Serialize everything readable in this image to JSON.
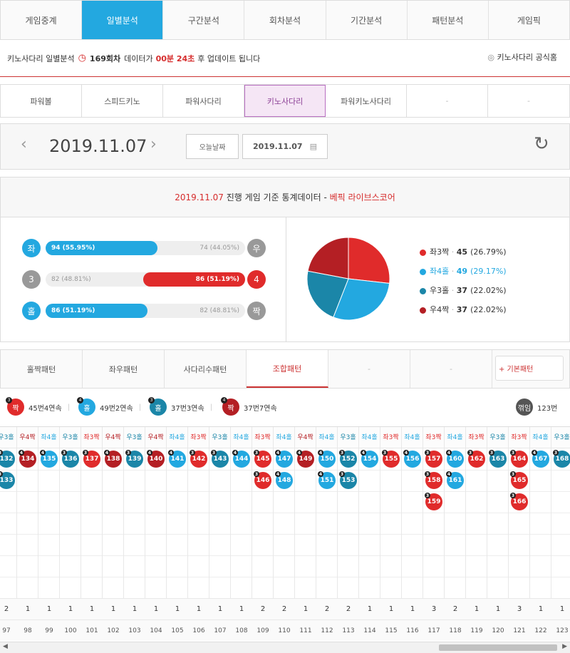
{
  "nav": {
    "tabs": [
      "게임중계",
      "일별분석",
      "구간분석",
      "회차분석",
      "기간분석",
      "패턴분석",
      "게임픽"
    ],
    "active": 1
  },
  "info": {
    "prefix": "키노사다리 일별분석",
    "round": "169회차",
    "mid": "데이터가",
    "time": "00분 24초",
    "suffix": "후 업데이트 됩니다",
    "home": "키노사다리 공식홈"
  },
  "games": {
    "tabs": [
      "파워볼",
      "스피드키노",
      "파워사다리",
      "키노사다리",
      "파워키노사다리",
      "-",
      "-"
    ],
    "active": 3
  },
  "date": {
    "display": "2019.11.07",
    "today_btn": "오늘날짜",
    "picker": "2019.11.07"
  },
  "stats": {
    "header_date": "2019.11.07",
    "header_mid": "진행 게임 기준 통계데이터 -",
    "header_source": "베픽 라이브스코어",
    "rows": [
      {
        "left_label": "좌",
        "left_text": "94 (55.95%)",
        "left_pct": 55.95,
        "right_text": "74 (44.05%)",
        "right_label": "우",
        "winner": "left",
        "left_color": "#23a8e0",
        "right_color": "#999999",
        "fill_color": "#23a8e0"
      },
      {
        "left_label": "3",
        "left_text": "82 (48.81%)",
        "left_pct": 48.81,
        "right_text": "86 (51.19%)",
        "right_label": "4",
        "winner": "right",
        "left_color": "#999999",
        "right_color": "#e02b2b",
        "fill_color": "#e02b2b"
      },
      {
        "left_label": "홀",
        "left_text": "86 (51.19%)",
        "left_pct": 51.19,
        "right_text": "82 (48.81%)",
        "right_label": "짝",
        "winner": "left",
        "left_color": "#23a8e0",
        "right_color": "#999999",
        "fill_color": "#23a8e0"
      }
    ]
  },
  "chart_data": {
    "type": "pie",
    "slices": [
      {
        "label": "좌3짝",
        "value": 45,
        "pct": "26.79%",
        "color": "#e02b2b"
      },
      {
        "label": "좌4홀",
        "value": 49,
        "pct": "29.17%",
        "color": "#23a8e0"
      },
      {
        "label": "우3홀",
        "value": 37,
        "pct": "22.02%",
        "color": "#1b86a8"
      },
      {
        "label": "우4짝",
        "value": 37,
        "pct": "22.02%",
        "color": "#b41f24"
      }
    ]
  },
  "pattern_tabs": {
    "tabs": [
      "홀짝패턴",
      "좌우패턴",
      "사다리수패턴",
      "조합패턴",
      "-",
      "-"
    ],
    "active": 3,
    "basic_btn": "+ 기본패턴"
  },
  "summary": [
    {
      "label": "짝",
      "badge": "3",
      "text": "45번4연속",
      "color": "#e02b2b"
    },
    {
      "label": "홀",
      "badge": "4",
      "text": "49번2연속",
      "color": "#23a8e0"
    },
    {
      "label": "홀",
      "badge": "3",
      "text": "37번3연속",
      "color": "#1b86a8"
    },
    {
      "label": "짝",
      "badge": "4",
      "text": "37번7연속",
      "color": "#b41f24"
    }
  ],
  "summary_end": {
    "label": "꺾임",
    "text": "123번"
  },
  "columns": [
    {
      "h": "우3홀",
      "t": "u3",
      "balls": [
        "132",
        "133"
      ],
      "cnt": "2",
      "r": "97"
    },
    {
      "h": "우4짝",
      "t": "u4",
      "balls": [
        "134"
      ],
      "cnt": "1",
      "r": "98"
    },
    {
      "h": "좌4홀",
      "t": "z4",
      "balls": [
        "135"
      ],
      "cnt": "1",
      "r": "99"
    },
    {
      "h": "우3홀",
      "t": "u3",
      "balls": [
        "136"
      ],
      "cnt": "1",
      "r": "100"
    },
    {
      "h": "좌3짝",
      "t": "z3",
      "balls": [
        "137"
      ],
      "cnt": "1",
      "r": "101"
    },
    {
      "h": "우4짝",
      "t": "u4",
      "balls": [
        "138"
      ],
      "cnt": "1",
      "r": "102"
    },
    {
      "h": "우3홀",
      "t": "u3",
      "balls": [
        "139"
      ],
      "cnt": "1",
      "r": "103"
    },
    {
      "h": "우4짝",
      "t": "u4",
      "balls": [
        "140"
      ],
      "cnt": "1",
      "r": "104"
    },
    {
      "h": "좌4홀",
      "t": "z4",
      "balls": [
        "141"
      ],
      "cnt": "1",
      "r": "105"
    },
    {
      "h": "좌3짝",
      "t": "z3",
      "balls": [
        "142"
      ],
      "cnt": "1",
      "r": "106"
    },
    {
      "h": "우3홀",
      "t": "u3",
      "balls": [
        "143"
      ],
      "cnt": "1",
      "r": "107"
    },
    {
      "h": "좌4홀",
      "t": "z4",
      "balls": [
        "144"
      ],
      "cnt": "1",
      "r": "108"
    },
    {
      "h": "좌3짝",
      "t": "z3",
      "balls": [
        "145",
        "146"
      ],
      "cnt": "2",
      "r": "109"
    },
    {
      "h": "좌4홀",
      "t": "z4",
      "balls": [
        "147",
        "148"
      ],
      "cnt": "2",
      "r": "110"
    },
    {
      "h": "우4짝",
      "t": "u4",
      "balls": [
        "149"
      ],
      "cnt": "1",
      "r": "111"
    },
    {
      "h": "좌4홀",
      "t": "z4",
      "balls": [
        "150",
        "151"
      ],
      "cnt": "2",
      "r": "112"
    },
    {
      "h": "우3홀",
      "t": "u3",
      "balls": [
        "152",
        "153"
      ],
      "cnt": "2",
      "r": "113"
    },
    {
      "h": "좌4홀",
      "t": "z4",
      "balls": [
        "154"
      ],
      "cnt": "1",
      "r": "114"
    },
    {
      "h": "좌3짝",
      "t": "z3",
      "balls": [
        "155"
      ],
      "cnt": "1",
      "r": "115"
    },
    {
      "h": "좌4홀",
      "t": "z4",
      "balls": [
        "156"
      ],
      "cnt": "1",
      "r": "116"
    },
    {
      "h": "좌3짝",
      "t": "z3",
      "balls": [
        "157",
        "158",
        "159"
      ],
      "cnt": "3",
      "r": "117"
    },
    {
      "h": "좌4홀",
      "t": "z4",
      "balls": [
        "160",
        "161"
      ],
      "cnt": "2",
      "r": "118"
    },
    {
      "h": "좌3짝",
      "t": "z3",
      "balls": [
        "162"
      ],
      "cnt": "1",
      "r": "119"
    },
    {
      "h": "우3홀",
      "t": "u3",
      "balls": [
        "163"
      ],
      "cnt": "1",
      "r": "120"
    },
    {
      "h": "좌3짝",
      "t": "z3",
      "balls": [
        "164",
        "165",
        "166"
      ],
      "cnt": "3",
      "r": "121"
    },
    {
      "h": "좌4홀",
      "t": "z4",
      "balls": [
        "167"
      ],
      "cnt": "1",
      "r": "122"
    },
    {
      "h": "우3홀",
      "t": "u3",
      "balls": [
        "168"
      ],
      "cnt": "1",
      "r": "123"
    }
  ],
  "type_style": {
    "z3": {
      "color": "#e02b2b",
      "badge": "3"
    },
    "z4": {
      "color": "#23a8e0",
      "badge": "4"
    },
    "u3": {
      "color": "#1b86a8",
      "badge": "3"
    },
    "u4": {
      "color": "#b41f24",
      "badge": "4"
    }
  }
}
